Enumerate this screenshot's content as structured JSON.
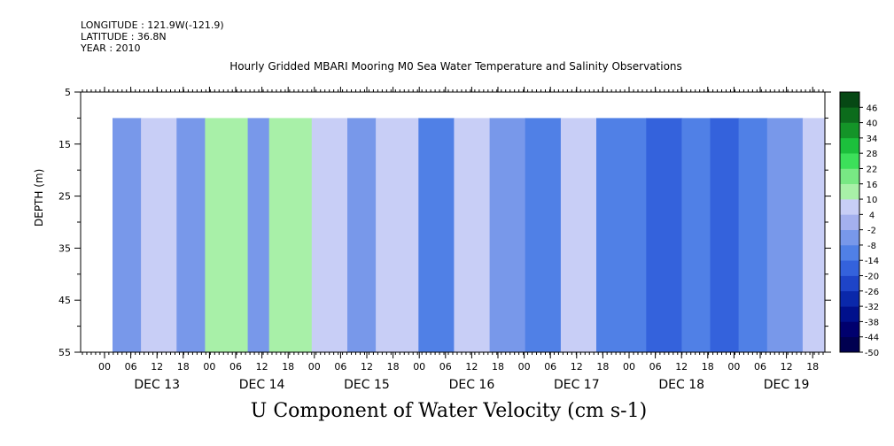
{
  "header": {
    "longitude": "LONGITUDE : 121.9W(-121.9)",
    "latitude": "LATITUDE : 36.8N",
    "year": "YEAR : 2010"
  },
  "chart_data": {
    "type": "heatmap",
    "title": "Hourly Gridded MBARI Mooring M0 Sea Water Temperature and Salinity Observations",
    "bottom_title": "U Component of Water Velocity (cm s-1)",
    "ylabel": "DEPTH (m)",
    "y_range": [
      5,
      55
    ],
    "y_inverted": true,
    "y_ticks": [
      "5",
      "15",
      "25",
      "35",
      "45",
      "55"
    ],
    "data_depth_range": [
      10,
      55
    ],
    "x_ticks": [
      "00",
      "06",
      "12",
      "18",
      "00",
      "06",
      "12",
      "18",
      "00",
      "06",
      "12",
      "18",
      "00",
      "06",
      "12",
      "18",
      "00",
      "06",
      "12",
      "18",
      "00",
      "06",
      "12",
      "18",
      "00",
      "06",
      "12",
      "18"
    ],
    "x_days": [
      "DEC 13",
      "DEC 14",
      "DEC 15",
      "DEC 16",
      "DEC 17",
      "DEC 18",
      "DEC 19"
    ],
    "colorbar": {
      "levels": [
        -50,
        -44,
        -38,
        -32,
        -26,
        -20,
        -14,
        -8,
        -2,
        4,
        10,
        16,
        22,
        28,
        34,
        40,
        46
      ],
      "labels": [
        "46",
        "40",
        "34",
        "28",
        "22",
        "16",
        "10",
        "4",
        "-2",
        "-8",
        "-14",
        "-20",
        "-26",
        "-32",
        "-38",
        "-44",
        "-50"
      ]
    },
    "bands": [
      {
        "from": 0.0,
        "to": 0.04,
        "value": -6
      },
      {
        "from": 0.04,
        "to": 0.09,
        "value": 8
      },
      {
        "from": 0.09,
        "to": 0.13,
        "value": -4
      },
      {
        "from": 0.13,
        "to": 0.19,
        "value": 10
      },
      {
        "from": 0.19,
        "to": 0.22,
        "value": -8
      },
      {
        "from": 0.22,
        "to": 0.28,
        "value": 12
      },
      {
        "from": 0.28,
        "to": 0.33,
        "value": 6
      },
      {
        "from": 0.33,
        "to": 0.37,
        "value": -6
      },
      {
        "from": 0.37,
        "to": 0.43,
        "value": 6
      },
      {
        "from": 0.43,
        "to": 0.48,
        "value": -10
      },
      {
        "from": 0.48,
        "to": 0.53,
        "value": 8
      },
      {
        "from": 0.53,
        "to": 0.58,
        "value": -8
      },
      {
        "from": 0.58,
        "to": 0.63,
        "value": -12
      },
      {
        "from": 0.63,
        "to": 0.68,
        "value": 6
      },
      {
        "from": 0.68,
        "to": 0.75,
        "value": -14
      },
      {
        "from": 0.75,
        "to": 0.8,
        "value": -16
      },
      {
        "from": 0.8,
        "to": 0.84,
        "value": -14
      },
      {
        "from": 0.84,
        "to": 0.88,
        "value": -18
      },
      {
        "from": 0.88,
        "to": 0.92,
        "value": -12
      },
      {
        "from": 0.92,
        "to": 0.97,
        "value": -6
      },
      {
        "from": 0.97,
        "to": 1.0,
        "value": 8
      }
    ]
  }
}
